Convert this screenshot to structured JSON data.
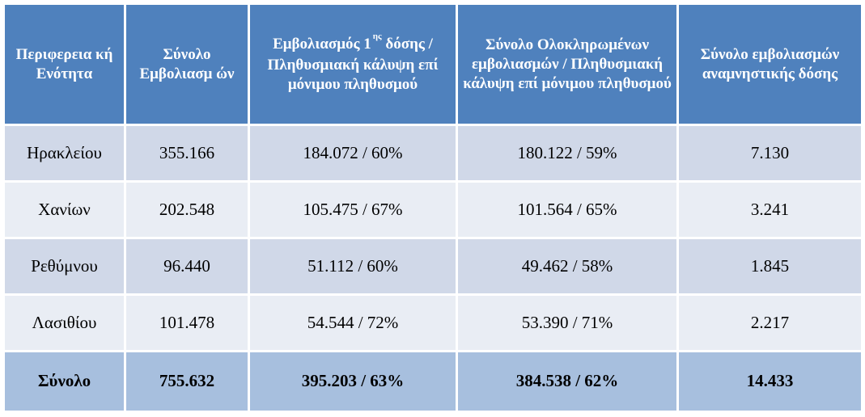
{
  "table": {
    "headers": {
      "h1": "Περιφερεια κή Ενότητα",
      "h2": "Σύνολο Εμβολιασμ ών",
      "h3_main": "Εμβολιασμός 1",
      "h3_sup": "ης",
      "h3_rest": "δόσης / Πληθυσμιακή κάλυψη επί μόνιμου πληθυσμού",
      "h4": "Σύνολο Ολοκληρωμένων εμβολιασμών / Πληθυσμιακή κάλυψη επί μόνιμου πληθυσμού",
      "h5": "Σύνολο εμβολιασμών αναμνηστικής δόσης"
    },
    "rows": [
      [
        "Ηρακλείου",
        "355.166",
        "184.072 / 60%",
        "180.122 / 59%",
        "7.130"
      ],
      [
        "Χανίων",
        "202.548",
        "105.475 / 67%",
        "101.564 / 65%",
        "3.241"
      ],
      [
        "Ρεθύμνου",
        "96.440",
        "51.112 / 60%",
        "49.462 / 58%",
        "1.845"
      ],
      [
        "Λασιθίου",
        "101.478",
        "54.544 / 72%",
        "53.390 / 71%",
        "2.217"
      ]
    ],
    "total": [
      "Σύνολο",
      "755.632",
      "395.203 / 63%",
      "384.538 / 62%",
      "14.433"
    ]
  },
  "colors": {
    "header_bg": "#4f81bd",
    "row_odd_bg": "#d0d8e8",
    "row_even_bg": "#e9edf4",
    "total_bg": "#a7bfde"
  }
}
